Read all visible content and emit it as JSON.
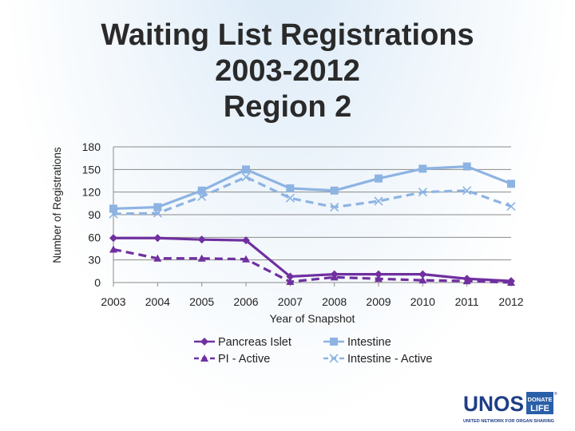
{
  "title_lines": [
    "Waiting List Registrations",
    "2003-2012",
    "Region 2"
  ],
  "chart_data": {
    "type": "line",
    "title": "Waiting List Registrations 2003-2012 Region 2",
    "xlabel": "Year of Snapshot",
    "ylabel": "Number of Registrations",
    "categories": [
      "2003",
      "2004",
      "2005",
      "2006",
      "2007",
      "2008",
      "2009",
      "2010",
      "2011",
      "2012"
    ],
    "ylim": [
      0,
      180
    ],
    "yticks": [
      0,
      30,
      60,
      90,
      120,
      150,
      180
    ],
    "grid": true,
    "legend_position": "bottom",
    "series": [
      {
        "name": "Pancreas Islet",
        "color": "#7030a0",
        "dash": false,
        "marker": "diamond",
        "values": [
          59,
          59,
          57,
          56,
          8,
          11,
          11,
          11,
          5,
          2
        ]
      },
      {
        "name": "PI - Active",
        "color": "#7030a0",
        "dash": true,
        "marker": "triangle",
        "values": [
          44,
          32,
          32,
          31,
          1,
          7,
          5,
          3,
          2,
          0
        ]
      },
      {
        "name": "Intestine",
        "color": "#8db3e2",
        "dash": false,
        "marker": "square",
        "values": [
          98,
          100,
          122,
          150,
          125,
          122,
          138,
          151,
          154,
          131
        ]
      },
      {
        "name": "Intestine - Active",
        "color": "#8db3e2",
        "dash": true,
        "marker": "x",
        "values": [
          91,
          92,
          114,
          140,
          112,
          100,
          108,
          120,
          122,
          101
        ]
      }
    ]
  },
  "logo": {
    "text": "UNOS",
    "badge_top": "DONATE",
    "badge_bottom": "LIFE",
    "tagline": "UNITED NETWORK FOR ORGAN SHARING",
    "reg": "®"
  }
}
